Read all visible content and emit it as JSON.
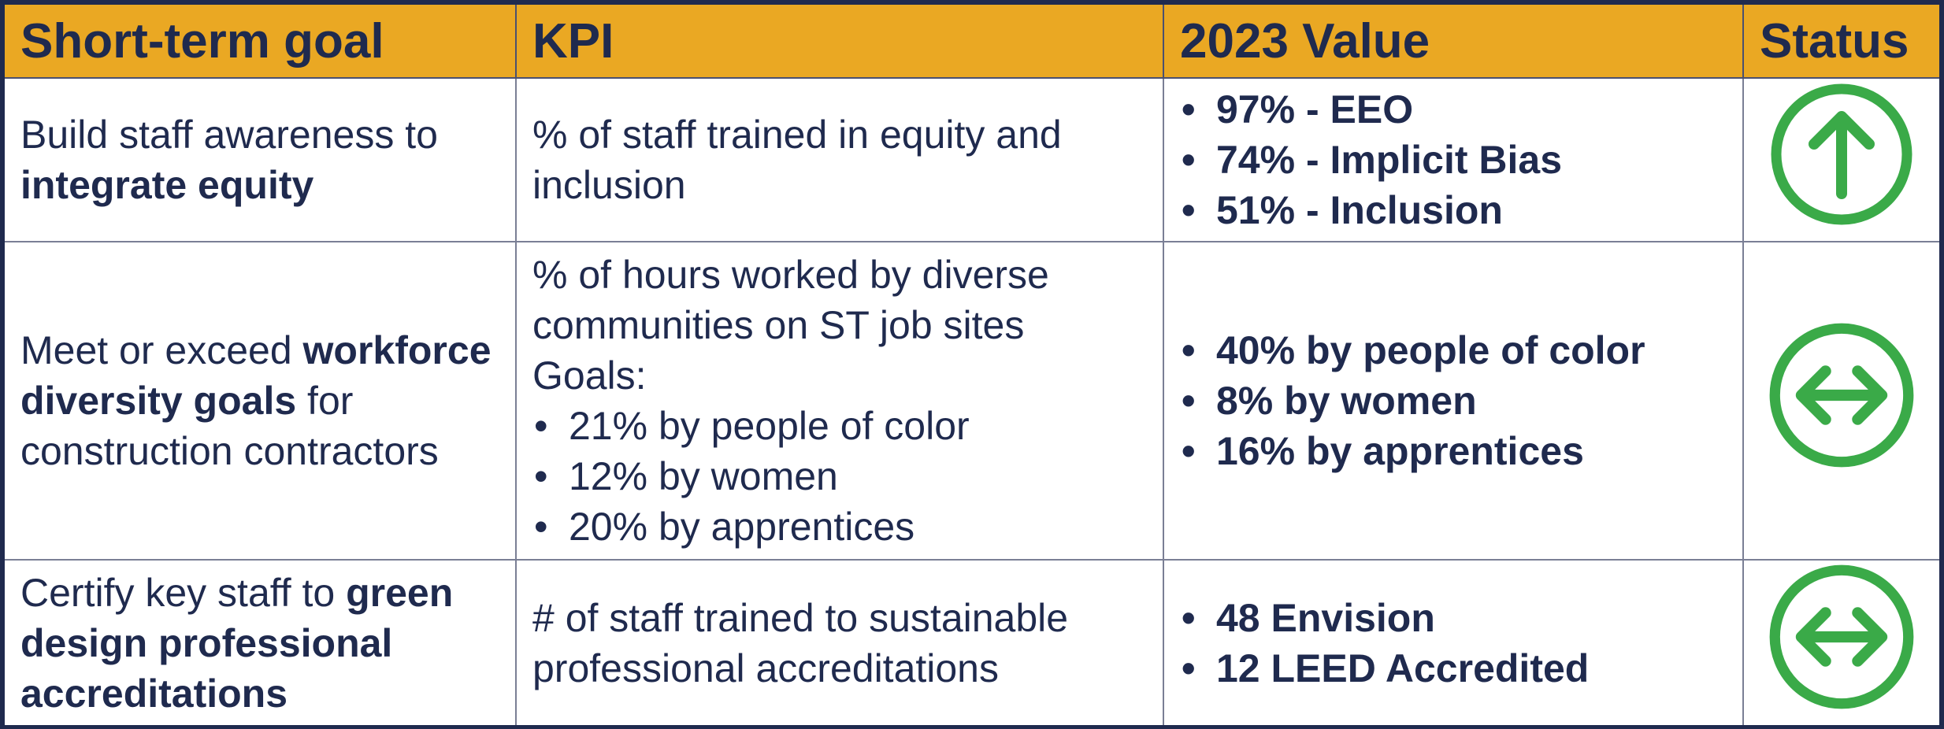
{
  "table": {
    "header": [
      "Short-term goal",
      "KPI",
      "2023 Value",
      "Status"
    ],
    "rows": [
      {
        "goal": [
          "Build staff awareness to ",
          "integrate equity"
        ],
        "kpi": "% of staff trained in equity and inclusion",
        "values": [
          "97%  - EEO",
          "74%  - Implicit Bias",
          "51%  - Inclusion"
        ]
      },
      {
        "goal": [
          "Meet or exceed ",
          "workforce diversity goals",
          " for construction contractors"
        ],
        "kpi": "% of hours worked by diverse communities on ST job sites",
        "kpi_goals_label": "Goals:",
        "kpi_goals": [
          "21% by people of color",
          "12% by women",
          "20% by apprentices"
        ],
        "values": [
          "40% by people of color",
          "8% by women",
          "16% by apprentices"
        ]
      },
      {
        "goal": [
          "Certify key staff to ",
          "green design professional accreditations"
        ],
        "kpi": "# of staff trained to sustainable professional accreditations",
        "values": [
          "48 Envision",
          "12 LEED Accredited"
        ]
      }
    ]
  }
}
